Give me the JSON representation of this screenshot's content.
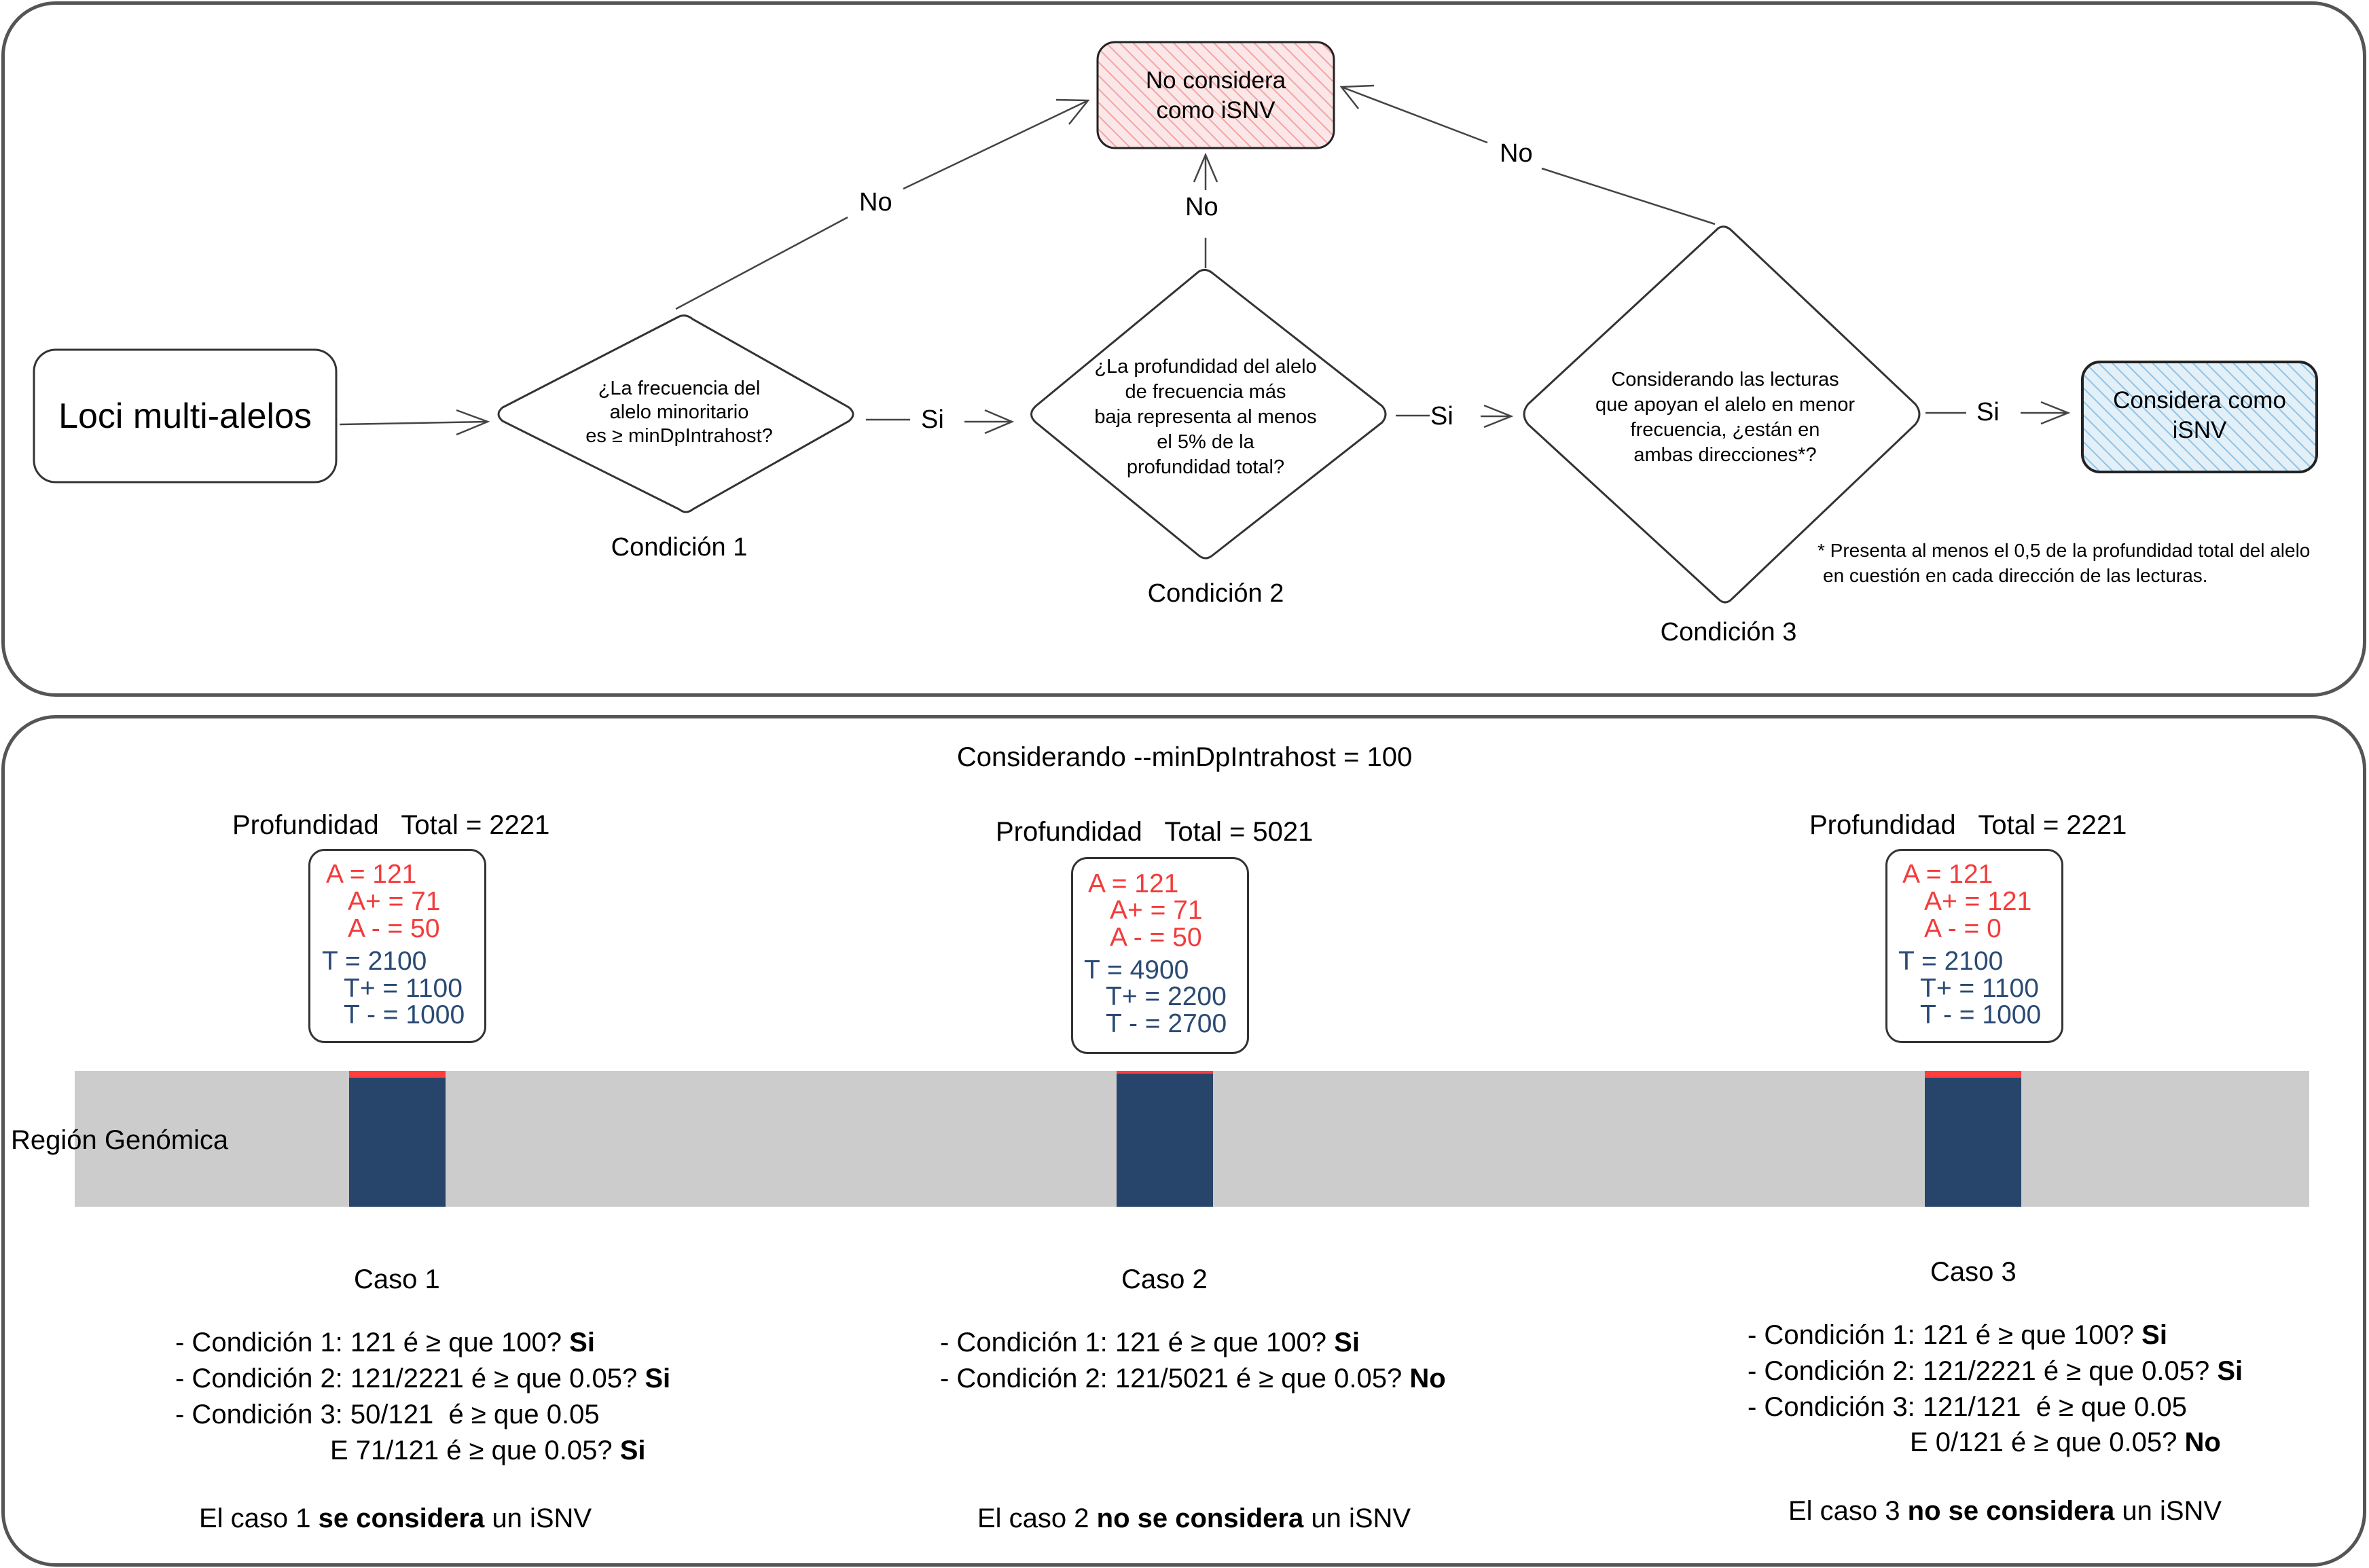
{
  "flowchart": {
    "start": "Loci multi-alelos",
    "cond1": {
      "question": [
        "¿La frecuencia del",
        "alelo minoritario",
        "es ≥ minDpIntrahost?"
      ],
      "label": "Condición 1"
    },
    "cond2": {
      "question": [
        "¿La profundidad del alelo",
        "de frecuencia más",
        "baja representa al menos",
        "el 5% de la",
        "profundidad total?"
      ],
      "label": "Condición 2"
    },
    "cond3": {
      "question": [
        "Considerando las lecturas",
        "que apoyan el alelo en menor",
        "frecuencia, ¿están en",
        "ambas direcciones*?"
      ],
      "label": "Condición 3"
    },
    "no_result": [
      "No considera",
      "como iSNV"
    ],
    "yes_result": [
      "Considera como",
      "iSNV"
    ],
    "yes_label": "Si",
    "no_label": "No",
    "footnote": [
      "* Presenta al menos el 0,5 de la profundidad total del alelo",
      "en cuestión en cada dirección de las lecturas."
    ],
    "colors": {
      "no_fill": "#f9e0e0",
      "no_hatch": "#f3a4a4",
      "yes_fill": "#dcecf6",
      "yes_hatch": "#8fc3e6"
    }
  },
  "examples": {
    "title": "Considerando --minDpIntrahost = 100",
    "region_label": "Región Genómica",
    "colors": {
      "alt": "#ff3d3d",
      "ref": "#27446b",
      "region": "#cccccc"
    },
    "cases": [
      {
        "depth_header": "Profundidad   Total = 2221",
        "depth_lines": [
          "A = 121",
          "A+ = 71",
          "A - = 50",
          "T = 2100",
          "T+ = 1100",
          "T - = 1000"
        ],
        "alt_fraction": 0.0545,
        "name": "Caso 1",
        "conditions": [
          {
            "text": "- Condición 1: 121 é ≥ que 100?",
            "answer": "Si"
          },
          {
            "text": "- Condición 2: 121/2221 é ≥ que 0.05?",
            "answer": "Si"
          },
          {
            "text": "- Condición 3: 50/121  é ≥ que 0.05",
            "answer": ""
          },
          {
            "text": "E 71/121 é ≥ que 0.05?",
            "answer": "Si"
          }
        ],
        "verdict_pre": "El caso 1 ",
        "verdict_bold": "se considera",
        "verdict_post": " un iSNV"
      },
      {
        "depth_header": "Profundidad   Total = 5021",
        "depth_lines": [
          "A = 121",
          "A+ = 71",
          "A - = 50",
          "T = 4900",
          "T+ = 2200",
          "T - = 2700"
        ],
        "alt_fraction": 0.024,
        "name": "Caso 2",
        "conditions": [
          {
            "text": "- Condición 1: 121 é ≥ que 100?",
            "answer": "Si"
          },
          {
            "text": "- Condición 2: 121/5021 é ≥ que 0.05?",
            "answer": "No"
          }
        ],
        "verdict_pre": "El caso 2 ",
        "verdict_bold": "no se considera",
        "verdict_post": " un iSNV"
      },
      {
        "depth_header": "Profundidad   Total = 2221",
        "depth_lines": [
          "A = 121",
          "A+ = 121",
          "A - = 0",
          "T = 2100",
          "T+ = 1100",
          "T - = 1000"
        ],
        "alt_fraction": 0.0545,
        "name": "Caso 3",
        "conditions": [
          {
            "text": "- Condición 1: 121 é ≥ que 100?",
            "answer": "Si"
          },
          {
            "text": "- Condición 2: 121/2221 é ≥ que 0.05?",
            "answer": "Si"
          },
          {
            "text": "- Condición 3: 121/121  é ≥ que 0.05",
            "answer": ""
          },
          {
            "text": "E 0/121 é ≥ que 0.05?",
            "answer": "No"
          }
        ],
        "verdict_pre": "El caso 3 ",
        "verdict_bold": "no se considera",
        "verdict_post": " un iSNV"
      }
    ]
  }
}
